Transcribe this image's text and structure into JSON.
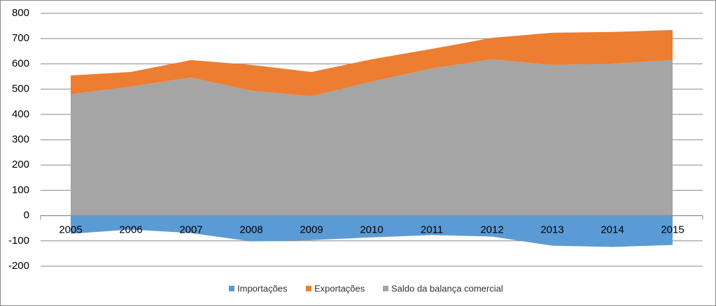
{
  "chart_data": {
    "type": "stacked_area",
    "categories": [
      "2005",
      "2006",
      "2007",
      "2008",
      "2009",
      "2010",
      "2011",
      "2012",
      "2013",
      "2014",
      "2015"
    ],
    "series": [
      {
        "name": "Importações",
        "color": "#5b9bd5",
        "values": [
          -72,
          -55,
          -69,
          -102,
          -97,
          -86,
          -77,
          -83,
          -119,
          -124,
          -116
        ]
      },
      {
        "name": "Exportações",
        "color": "#ed7d31",
        "values": [
          74,
          58,
          69,
          102,
          96,
          88,
          77,
          85,
          127,
          125,
          119
        ]
      },
      {
        "name": "Saldo da balança comercial",
        "color": "#a5a5a5",
        "values": [
          480,
          510,
          546,
          494,
          472,
          530,
          582,
          618,
          596,
          601,
          615
        ]
      }
    ],
    "ylim": [
      -200,
      800
    ],
    "yticks": [
      -200,
      -100,
      0,
      100,
      200,
      300,
      400,
      500,
      600,
      700,
      800
    ],
    "grid": true,
    "legend": "bottom"
  }
}
